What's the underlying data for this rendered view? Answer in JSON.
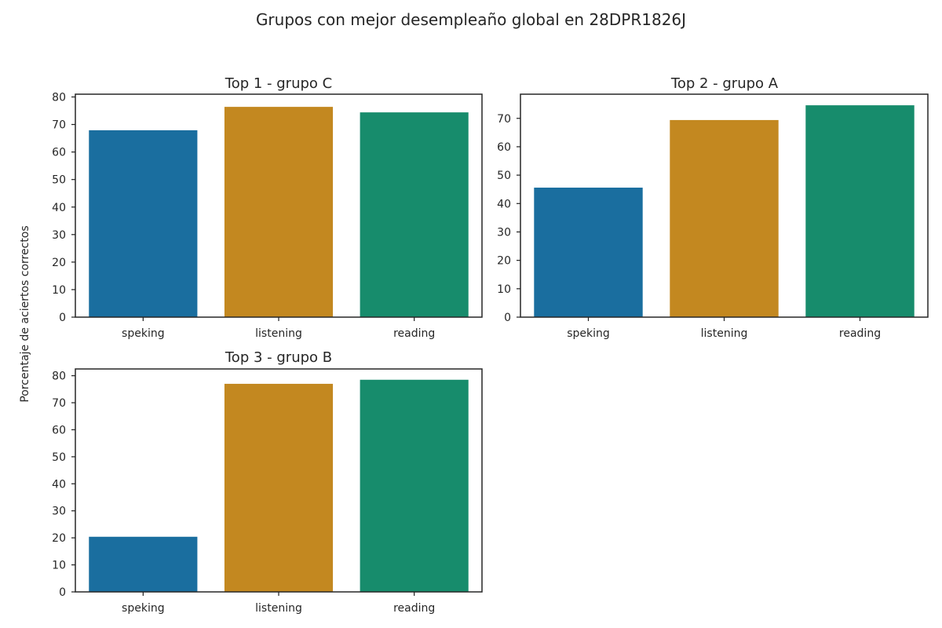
{
  "suptitle": "Grupos con mejor desempleaño global en 28DPR1826J",
  "shared_ylabel": "Porcentaje de aciertos correctos",
  "colors": {
    "speking": "#1a6e9f",
    "listening": "#c38820",
    "reading": "#178c6c",
    "axis": "#262626"
  },
  "chart_data": [
    {
      "type": "bar",
      "title": "Top  1 - grupo C",
      "categories": [
        "speking",
        "listening",
        "reading"
      ],
      "values": [
        67.9,
        76.4,
        74.4
      ],
      "ylim": [
        0,
        81
      ],
      "yticks": [
        0,
        10,
        20,
        30,
        40,
        50,
        60,
        70,
        80
      ],
      "grid": false
    },
    {
      "type": "bar",
      "title": "Top  2 - grupo A",
      "categories": [
        "speking",
        "listening",
        "reading"
      ],
      "values": [
        45.6,
        69.4,
        74.6
      ],
      "ylim": [
        0,
        78.5
      ],
      "yticks": [
        0,
        10,
        20,
        30,
        40,
        50,
        60,
        70
      ],
      "grid": false
    },
    {
      "type": "bar",
      "title": "Top  3 - grupo B",
      "categories": [
        "speking",
        "listening",
        "reading"
      ],
      "values": [
        20.4,
        77.0,
        78.5
      ],
      "ylim": [
        0,
        82.5
      ],
      "yticks": [
        0,
        10,
        20,
        30,
        40,
        50,
        60,
        70,
        80
      ],
      "grid": false
    }
  ]
}
